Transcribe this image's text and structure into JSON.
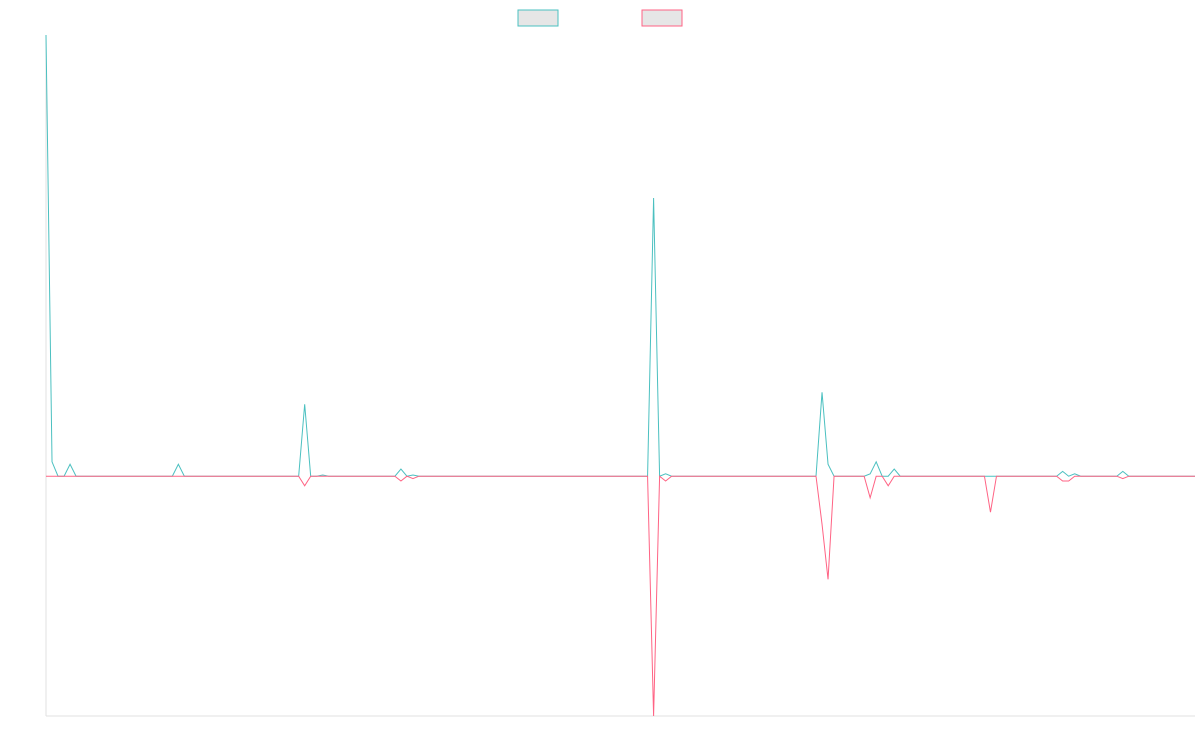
{
  "chart_data": {
    "type": "line",
    "title": "",
    "xlabel": "",
    "ylabel": "",
    "x_count": 192,
    "ylim": [
      -1.0,
      1.84
    ],
    "grid": false,
    "legend_position": "top-center",
    "series": [
      {
        "color": "#4bc0c0",
        "fill": "#e6e6e6",
        "points": [
          [
            0,
            1.84
          ],
          [
            1,
            0.06
          ],
          [
            2,
            0
          ],
          [
            3,
            0
          ],
          [
            4,
            0.05
          ],
          [
            5,
            0
          ],
          [
            6,
            0
          ],
          [
            21,
            0
          ],
          [
            22,
            0.05
          ],
          [
            23,
            0
          ],
          [
            42,
            0
          ],
          [
            43,
            0.3
          ],
          [
            44,
            0
          ],
          [
            45,
            0
          ],
          [
            46,
            0.005
          ],
          [
            47,
            0
          ],
          [
            58,
            0
          ],
          [
            59,
            0.03
          ],
          [
            60,
            0
          ],
          [
            61,
            0.005
          ],
          [
            62,
            0
          ],
          [
            100,
            0
          ],
          [
            101,
            1.16
          ],
          [
            102,
            0
          ],
          [
            103,
            0.01
          ],
          [
            104,
            0
          ],
          [
            128,
            0
          ],
          [
            129,
            0.35
          ],
          [
            130,
            0.05
          ],
          [
            131,
            0
          ],
          [
            136,
            0
          ],
          [
            137,
            0.01
          ],
          [
            138,
            0.06
          ],
          [
            139,
            0
          ],
          [
            140,
            0
          ],
          [
            141,
            0.03
          ],
          [
            142,
            0
          ],
          [
            168,
            0
          ],
          [
            169,
            0.02
          ],
          [
            170,
            0
          ],
          [
            171,
            0.01
          ],
          [
            172,
            0
          ],
          [
            178,
            0
          ],
          [
            179,
            0.02
          ],
          [
            180,
            0
          ],
          [
            191,
            0
          ]
        ]
      },
      {
        "color": "#ff6384",
        "fill": "#e6e6e6",
        "points": [
          [
            0,
            0
          ],
          [
            1,
            0
          ],
          [
            42,
            0
          ],
          [
            43,
            -0.04
          ],
          [
            44,
            0
          ],
          [
            58,
            0
          ],
          [
            59,
            -0.02
          ],
          [
            60,
            0
          ],
          [
            61,
            -0.01
          ],
          [
            62,
            0
          ],
          [
            100,
            0
          ],
          [
            101,
            -1.0
          ],
          [
            102,
            0
          ],
          [
            103,
            -0.02
          ],
          [
            104,
            0
          ],
          [
            128,
            0
          ],
          [
            129,
            -0.2
          ],
          [
            130,
            -0.43
          ],
          [
            131,
            0
          ],
          [
            136,
            0
          ],
          [
            137,
            -0.09
          ],
          [
            138,
            0
          ],
          [
            139,
            0
          ],
          [
            140,
            -0.04
          ],
          [
            141,
            0
          ],
          [
            156,
            0
          ],
          [
            157,
            -0.15
          ],
          [
            158,
            0
          ],
          [
            168,
            0
          ],
          [
            169,
            -0.02
          ],
          [
            170,
            -0.02
          ],
          [
            171,
            0
          ],
          [
            178,
            0
          ],
          [
            179,
            -0.01
          ],
          [
            180,
            0
          ],
          [
            191,
            0
          ]
        ]
      }
    ]
  }
}
